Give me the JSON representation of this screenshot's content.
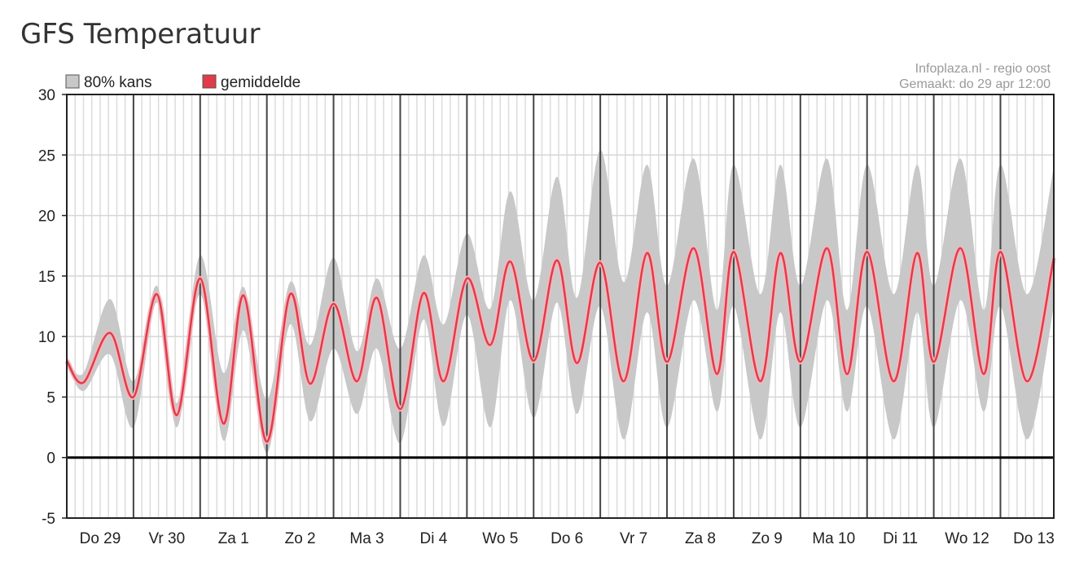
{
  "page": {
    "title": "GFS Temperatuur"
  },
  "chart_data": {
    "type": "area",
    "title": "GFS Temperatuur",
    "credit_lines": [
      "Infoplaza.nl - regio oost",
      "Gemaakt: do 29 apr 12:00"
    ],
    "legend": {
      "placement": "top-left",
      "entries": [
        {
          "name": "80% kans",
          "color": "#c8c8c8"
        },
        {
          "name": "gemiddelde",
          "color": "#e03c4a"
        }
      ]
    },
    "ylim": [
      -5,
      30
    ],
    "yticks": [
      30,
      25,
      20,
      15,
      10,
      5,
      0,
      -5
    ],
    "xlim_days": [
      0,
      14.8
    ],
    "day_labels": [
      "Do 29",
      "Vr 30",
      "Za 1",
      "Zo 2",
      "Ma 3",
      "Di 4",
      "Wo 5",
      "Do 6",
      "Vr 7",
      "Za 8",
      "Zo 9",
      "Ma 10",
      "Di 11",
      "Wo 12",
      "Do 13"
    ],
    "grid": true,
    "series": [
      {
        "name": "gemiddelde",
        "color": "#e03c4a",
        "x": [
          0,
          0.25,
          0.65,
          1,
          1.35,
          1.65,
          2,
          2.35,
          2.65,
          3,
          3.35,
          3.65,
          4,
          4.35,
          4.65,
          5,
          5.35,
          5.65,
          6,
          6.35,
          6.65,
          7,
          7.35,
          7.65,
          8,
          8.35,
          8.7,
          9,
          9.4,
          9.75,
          10,
          10.4,
          10.7,
          11,
          11.4,
          11.7,
          12,
          12.4,
          12.75,
          13,
          13.4,
          13.75,
          14,
          14.4,
          14.8
        ],
        "y": [
          8,
          6.2,
          10.3,
          5,
          13.5,
          3.5,
          14.8,
          2.8,
          13.4,
          1.3,
          13.5,
          6.1,
          12.7,
          6.3,
          13.2,
          4,
          13.6,
          6.3,
          14.8,
          9.3,
          16.2,
          8,
          16.3,
          7.8,
          16.1,
          6.3,
          16.9,
          7.9,
          17.3,
          6.9,
          17,
          6.3,
          16.9,
          7.9,
          17.3,
          6.9,
          17,
          6.3,
          16.9,
          7.9,
          17.3,
          6.9,
          17,
          6.3,
          16.5
        ]
      }
    ],
    "band": {
      "name": "80% kans",
      "color": "#c8c8c8",
      "x": [
        0,
        0.25,
        0.65,
        1,
        1.35,
        1.65,
        2,
        2.35,
        2.65,
        3,
        3.35,
        3.65,
        4,
        4.35,
        4.65,
        5,
        5.35,
        5.65,
        6,
        6.35,
        6.65,
        7,
        7.35,
        7.65,
        8,
        8.35,
        8.7,
        9,
        9.4,
        9.75,
        10,
        10.4,
        10.7,
        11,
        11.4,
        11.7,
        12,
        12.4,
        12.75,
        13,
        13.4,
        13.75,
        14,
        14.4,
        14.8
      ],
      "upper": [
        8.3,
        7,
        13.1,
        6.3,
        14.2,
        4.5,
        16.7,
        7,
        14.1,
        4.8,
        14.5,
        9.3,
        16.5,
        8.8,
        14.8,
        9,
        16.7,
        11,
        18.5,
        12.3,
        22,
        13,
        23.2,
        13.2,
        25.4,
        14.5,
        24.2,
        14.2,
        24.7,
        12.2,
        24.2,
        13.5,
        24.2,
        14.2,
        24.7,
        12.2,
        24.2,
        13.5,
        24.2,
        14.2,
        24.7,
        12.2,
        24.2,
        13.5,
        24
      ],
      "lower": [
        7.8,
        5.5,
        8.5,
        2.5,
        12.8,
        2.5,
        13.5,
        1.4,
        10.5,
        0.4,
        11,
        3,
        9,
        3.6,
        9,
        1.2,
        11.4,
        2.6,
        11.8,
        2.5,
        13,
        3.3,
        12.8,
        3.6,
        12.5,
        1.5,
        12,
        2.5,
        13,
        3.8,
        12.5,
        1.5,
        12,
        2.5,
        13,
        3.8,
        12.5,
        1.5,
        12,
        2.5,
        13,
        3.8,
        12.5,
        1.5,
        12.5
      ]
    }
  }
}
